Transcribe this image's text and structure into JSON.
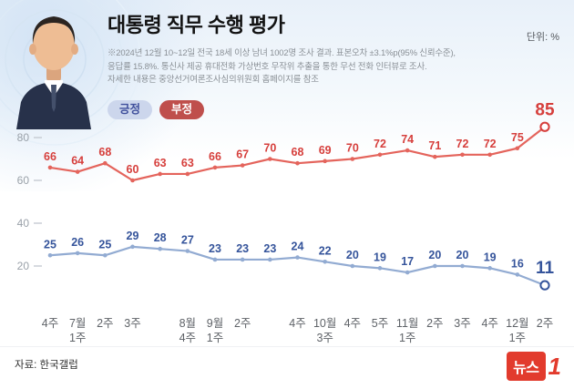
{
  "header": {
    "title": "대통령 직무 수행 평가",
    "unit_label": "단위: %",
    "note_lines": [
      "※2024년 12월 10~12일 전국 18세 이상 남녀 1002명 조사 결과. 표본오차 ±3.1%p(95% 신뢰수준),",
      "응답률 15.8%. 통신사 제공 휴대전화 가상번호 무작위 추출을 통한 무선 전화 인터뷰로 조사.",
      "자세한 내용은 중앙선거여론조사심의위원회 홈페이지를 참조"
    ],
    "legend": [
      {
        "label": "긍정",
        "bg": "#ccd6ec",
        "text_color": "#3f4f9c"
      },
      {
        "label": "부정",
        "bg": "#bf4f4c",
        "text_color": "#ffffff"
      }
    ]
  },
  "chart_data": {
    "type": "line",
    "title": "대통령 직무 수행 평가",
    "xlabel": "",
    "ylabel": "%",
    "ylim": [
      0,
      100
    ],
    "y_ticks": [
      20,
      40,
      60,
      80
    ],
    "grid": false,
    "legend_position": "top-left",
    "x_labels": [
      "4주",
      "7월|1주",
      "2주",
      "3주",
      "",
      "8월|4주",
      "9월|1주",
      "2주",
      "",
      "4주",
      "10월|3주",
      "4주",
      "5주",
      "11월|1주",
      "2주",
      "3주",
      "4주",
      "12월|1주",
      "2주"
    ],
    "series": [
      {
        "name": "부정",
        "color": "#e4645c",
        "label_color": "#d63f3c",
        "values": [
          66,
          64,
          68,
          60,
          63,
          63,
          66,
          67,
          70,
          68,
          69,
          70,
          72,
          74,
          71,
          72,
          72,
          75,
          85
        ]
      },
      {
        "name": "긍정",
        "color": "#92abd2",
        "label_color": "#35549b",
        "values": [
          25,
          26,
          25,
          29,
          28,
          27,
          23,
          23,
          23,
          24,
          22,
          20,
          19,
          17,
          20,
          20,
          19,
          16,
          11
        ]
      }
    ]
  },
  "footer": {
    "source": "자료: 한국갤럽",
    "logo": {
      "text": "뉴스",
      "accent": "1"
    }
  }
}
